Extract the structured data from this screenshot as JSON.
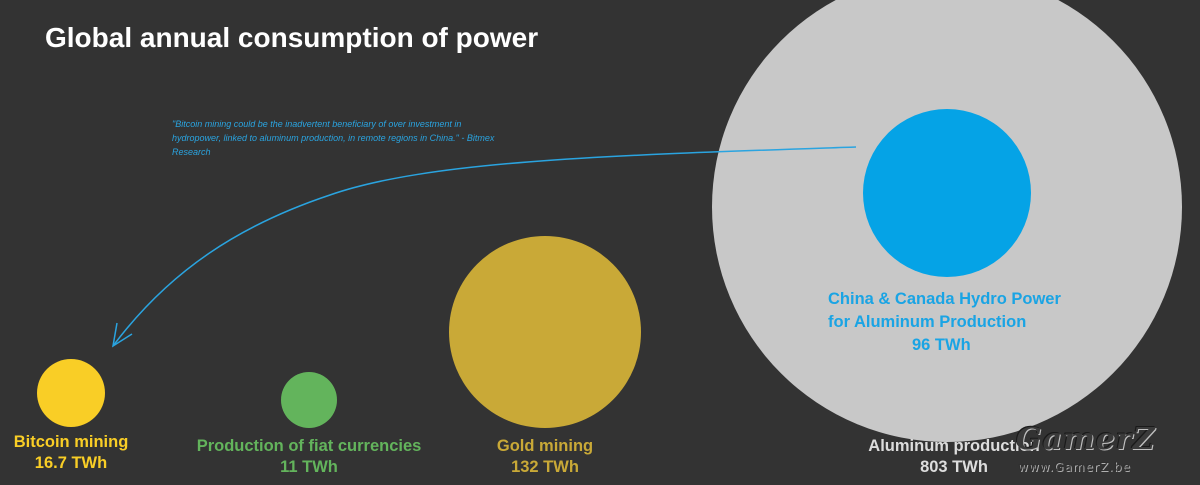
{
  "chart_data": {
    "type": "bubble",
    "title": "Global annual consumption of power",
    "unit": "TWh",
    "series": [
      {
        "id": "bitcoin",
        "line1": "Bitcoin mining",
        "line2": "16.7 TWh",
        "value": 16.7,
        "color": "#f9ce26",
        "label_color": "#f9ce26"
      },
      {
        "id": "fiat",
        "line1": "Production of fiat currencies",
        "line2": "11 TWh",
        "value": 11,
        "color": "#63b45c",
        "label_color": "#63b45c"
      },
      {
        "id": "gold",
        "line1": "Gold mining",
        "line2": "132 TWh",
        "value": 132,
        "color": "#c9a937",
        "label_color": "#c9a937"
      },
      {
        "id": "aluminum",
        "line1": "Aluminum production",
        "line2": "803 TWh",
        "value": 803,
        "color": "#c8c8c8",
        "label_color": "#dddddd"
      }
    ],
    "inset": {
      "id": "hydro",
      "line1": "China & Canada Hydro Power",
      "line2": "for Aluminum Production",
      "line3": "96 TWh",
      "value": 96,
      "color": "#05a3e6"
    },
    "annotation": {
      "text": "\"Bitcoin mining could be the inadvertent beneficiary of over investment in hydropower, linked to aluminum production, in remote regions in China.\" - Bitmex Research",
      "arrow_from": "hydro",
      "arrow_to": "bitcoin",
      "color": "#2aa4e0"
    }
  },
  "watermark": {
    "logo": "GamerZ",
    "url": "www.GamerZ.be"
  }
}
